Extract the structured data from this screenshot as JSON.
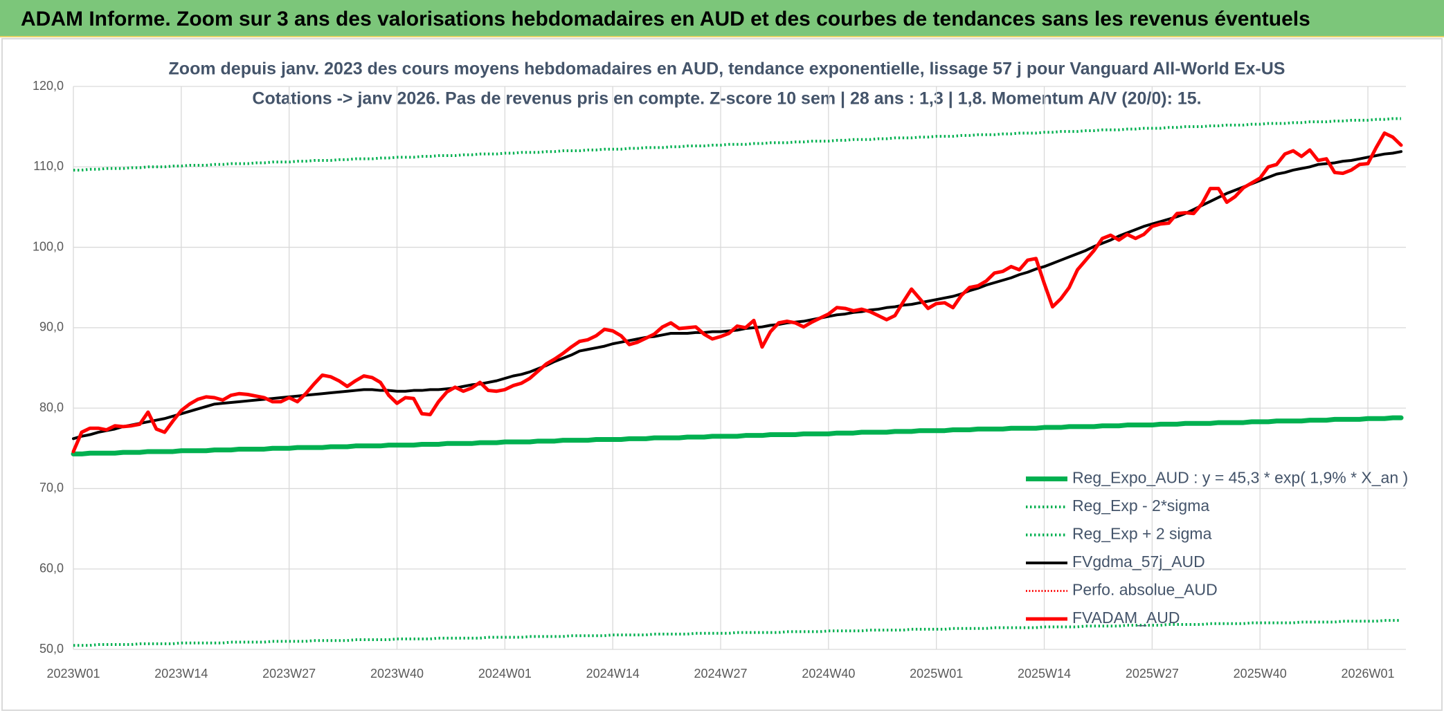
{
  "chart_data": {
    "type": "line",
    "title": "ADAM Informe. Zoom sur 3 ans des valorisations hebdomadaires en AUD et des courbes de tendances sans les revenus éventuels",
    "subtitle": [
      "Zoom depuis janv. 2023 des cours moyens hebdomadaires en AUD, tendance exponentielle, lissage 57 j pour Vanguard All-World Ex-US",
      "Cotations -> janv 2026. Pas de revenus pris en compte. Z-score 10 sem | 28 ans : 1,3 | 1,8. Momentum A/V (20/0): 15."
    ],
    "categories": [
      "2023W01",
      null,
      null,
      null,
      null,
      null,
      null,
      null,
      null,
      null,
      null,
      null,
      null,
      "2023W14",
      null,
      null,
      null,
      null,
      null,
      null,
      null,
      null,
      null,
      null,
      null,
      null,
      "2023W27",
      null,
      null,
      null,
      null,
      null,
      null,
      null,
      null,
      null,
      null,
      null,
      null,
      "2023W40",
      null,
      null,
      null,
      null,
      null,
      null,
      null,
      null,
      null,
      null,
      null,
      null,
      "2024W01",
      null,
      null,
      null,
      null,
      null,
      null,
      null,
      null,
      null,
      null,
      null,
      null,
      "2024W14",
      null,
      null,
      null,
      null,
      null,
      null,
      null,
      null,
      null,
      null,
      null,
      null,
      "2024W27",
      null,
      null,
      null,
      null,
      null,
      null,
      null,
      null,
      null,
      null,
      null,
      null,
      "2024W40",
      null,
      null,
      null,
      null,
      null,
      null,
      null,
      null,
      null,
      null,
      null,
      null,
      "2025W01",
      null,
      null,
      null,
      null,
      null,
      null,
      null,
      null,
      null,
      null,
      null,
      null,
      "2025W14",
      null,
      null,
      null,
      null,
      null,
      null,
      null,
      null,
      null,
      null,
      null,
      null,
      "2025W27",
      null,
      null,
      null,
      null,
      null,
      null,
      null,
      null,
      null,
      null,
      null,
      null,
      "2025W40",
      null,
      null,
      null,
      null,
      null,
      null,
      null,
      null,
      null,
      null,
      null,
      null,
      "2026W01",
      null,
      null,
      null,
      null
    ],
    "ylim": [
      50,
      120
    ],
    "yticks": [
      {
        "value": 50,
        "label": "50,0"
      },
      {
        "value": 60,
        "label": "60,0"
      },
      {
        "value": 70,
        "label": "70,0"
      },
      {
        "value": 80,
        "label": "80,0"
      },
      {
        "value": 90,
        "label": "90,0"
      },
      {
        "value": 100,
        "label": "100,0"
      },
      {
        "value": 110,
        "label": "110,0"
      },
      {
        "value": 120,
        "label": "120,0"
      }
    ],
    "grid": true,
    "legend": "bottom-right",
    "series": [
      {
        "name": "Reg_Expo_AUD : y = 45,3 * exp( 1,9% *  X_an )",
        "color": "#00b050",
        "style": "solid",
        "width": 7,
        "values": [
          74.3,
          74.3,
          74.4,
          74.4,
          74.4,
          74.4,
          74.5,
          74.5,
          74.5,
          74.6,
          74.6,
          74.6,
          74.6,
          74.7,
          74.7,
          74.7,
          74.7,
          74.8,
          74.8,
          74.8,
          74.9,
          74.9,
          74.9,
          74.9,
          75.0,
          75.0,
          75.0,
          75.1,
          75.1,
          75.1,
          75.1,
          75.2,
          75.2,
          75.2,
          75.3,
          75.3,
          75.3,
          75.3,
          75.4,
          75.4,
          75.4,
          75.4,
          75.5,
          75.5,
          75.5,
          75.6,
          75.6,
          75.6,
          75.6,
          75.7,
          75.7,
          75.7,
          75.8,
          75.8,
          75.8,
          75.8,
          75.9,
          75.9,
          75.9,
          76.0,
          76.0,
          76.0,
          76.0,
          76.1,
          76.1,
          76.1,
          76.1,
          76.2,
          76.2,
          76.2,
          76.3,
          76.3,
          76.3,
          76.3,
          76.4,
          76.4,
          76.4,
          76.5,
          76.5,
          76.5,
          76.5,
          76.6,
          76.6,
          76.6,
          76.7,
          76.7,
          76.7,
          76.7,
          76.8,
          76.8,
          76.8,
          76.8,
          76.9,
          76.9,
          76.9,
          77.0,
          77.0,
          77.0,
          77.0,
          77.1,
          77.1,
          77.1,
          77.2,
          77.2,
          77.2,
          77.2,
          77.3,
          77.3,
          77.3,
          77.4,
          77.4,
          77.4,
          77.4,
          77.5,
          77.5,
          77.5,
          77.5,
          77.6,
          77.6,
          77.6,
          77.7,
          77.7,
          77.7,
          77.7,
          77.8,
          77.8,
          77.8,
          77.9,
          77.9,
          77.9,
          77.9,
          78.0,
          78.0,
          78.0,
          78.1,
          78.1,
          78.1,
          78.1,
          78.2,
          78.2,
          78.2,
          78.2,
          78.3,
          78.3,
          78.3,
          78.4,
          78.4,
          78.4,
          78.4,
          78.5,
          78.5,
          78.5,
          78.6,
          78.6,
          78.6,
          78.6,
          78.7,
          78.7,
          78.7,
          78.8,
          78.8
        ]
      },
      {
        "name": "Reg_Exp - 2*sigma",
        "color": "#00b050",
        "style": "dotted",
        "width": 4,
        "values": [
          50.5,
          50.5,
          50.5,
          50.6,
          50.6,
          50.6,
          50.6,
          50.6,
          50.7,
          50.7,
          50.7,
          50.7,
          50.7,
          50.8,
          50.8,
          50.8,
          50.8,
          50.8,
          50.8,
          50.9,
          50.9,
          50.9,
          50.9,
          50.9,
          51.0,
          51.0,
          51.0,
          51.0,
          51.0,
          51.1,
          51.1,
          51.1,
          51.1,
          51.1,
          51.2,
          51.2,
          51.2,
          51.2,
          51.2,
          51.3,
          51.3,
          51.3,
          51.3,
          51.3,
          51.4,
          51.4,
          51.4,
          51.4,
          51.4,
          51.4,
          51.5,
          51.5,
          51.5,
          51.5,
          51.5,
          51.6,
          51.6,
          51.6,
          51.6,
          51.6,
          51.7,
          51.7,
          51.7,
          51.7,
          51.7,
          51.8,
          51.8,
          51.8,
          51.8,
          51.8,
          51.9,
          51.9,
          51.9,
          51.9,
          51.9,
          52.0,
          52.0,
          52.0,
          52.0,
          52.0,
          52.1,
          52.1,
          52.1,
          52.1,
          52.1,
          52.1,
          52.2,
          52.2,
          52.2,
          52.2,
          52.2,
          52.3,
          52.3,
          52.3,
          52.3,
          52.3,
          52.4,
          52.4,
          52.4,
          52.4,
          52.4,
          52.5,
          52.5,
          52.5,
          52.5,
          52.5,
          52.6,
          52.6,
          52.6,
          52.6,
          52.6,
          52.7,
          52.7,
          52.7,
          52.7,
          52.7,
          52.7,
          52.8,
          52.8,
          52.8,
          52.8,
          52.8,
          52.9,
          52.9,
          52.9,
          52.9,
          52.9,
          53.0,
          53.0,
          53.0,
          53.0,
          53.0,
          53.1,
          53.1,
          53.1,
          53.1,
          53.1,
          53.2,
          53.2,
          53.2,
          53.2,
          53.2,
          53.3,
          53.3,
          53.3,
          53.3,
          53.3,
          53.3,
          53.4,
          53.4,
          53.4,
          53.4,
          53.4,
          53.5,
          53.5,
          53.5,
          53.5,
          53.5,
          53.6,
          53.6,
          53.6
        ]
      },
      {
        "name": "Reg_Exp + 2 sigma",
        "color": "#00b050",
        "style": "dotted",
        "width": 4,
        "values": [
          109.6,
          109.6,
          109.7,
          109.7,
          109.8,
          109.8,
          109.8,
          109.9,
          109.9,
          110.0,
          110.0,
          110.0,
          110.1,
          110.1,
          110.2,
          110.2,
          110.2,
          110.3,
          110.3,
          110.4,
          110.4,
          110.4,
          110.5,
          110.5,
          110.6,
          110.6,
          110.6,
          110.7,
          110.7,
          110.8,
          110.8,
          110.8,
          110.9,
          110.9,
          111.0,
          111.0,
          111.0,
          111.1,
          111.1,
          111.2,
          111.2,
          111.2,
          111.3,
          111.3,
          111.4,
          111.4,
          111.4,
          111.5,
          111.5,
          111.6,
          111.6,
          111.6,
          111.7,
          111.7,
          111.8,
          111.8,
          111.8,
          111.9,
          111.9,
          112.0,
          112.0,
          112.0,
          112.1,
          112.1,
          112.2,
          112.2,
          112.2,
          112.3,
          112.3,
          112.4,
          112.4,
          112.4,
          112.5,
          112.5,
          112.6,
          112.6,
          112.6,
          112.7,
          112.7,
          112.8,
          112.8,
          112.8,
          112.9,
          112.9,
          113.0,
          113.0,
          113.0,
          113.1,
          113.1,
          113.2,
          113.2,
          113.2,
          113.3,
          113.3,
          113.4,
          113.4,
          113.4,
          113.5,
          113.5,
          113.6,
          113.6,
          113.6,
          113.7,
          113.7,
          113.8,
          113.8,
          113.8,
          113.9,
          113.9,
          114.0,
          114.0,
          114.0,
          114.1,
          114.1,
          114.2,
          114.2,
          114.2,
          114.3,
          114.3,
          114.4,
          114.4,
          114.4,
          114.5,
          114.5,
          114.6,
          114.6,
          114.6,
          114.7,
          114.7,
          114.8,
          114.8,
          114.8,
          114.9,
          114.9,
          115.0,
          115.0,
          115.0,
          115.1,
          115.1,
          115.2,
          115.2,
          115.2,
          115.3,
          115.3,
          115.4,
          115.4,
          115.4,
          115.5,
          115.5,
          115.6,
          115.6,
          115.6,
          115.7,
          115.7,
          115.8,
          115.8,
          115.8,
          115.9,
          115.9,
          116.0,
          116.0
        ]
      },
      {
        "name": "FVgdma_57j_AUD",
        "color": "#000000",
        "style": "solid",
        "width": 4,
        "values": [
          76.2,
          76.5,
          76.7,
          77.0,
          77.2,
          77.4,
          77.7,
          77.9,
          78.1,
          78.3,
          78.5,
          78.7,
          79.0,
          79.3,
          79.6,
          79.9,
          80.2,
          80.5,
          80.6,
          80.7,
          80.8,
          80.9,
          81.0,
          81.1,
          81.2,
          81.3,
          81.4,
          81.5,
          81.6,
          81.7,
          81.8,
          81.9,
          82.0,
          82.1,
          82.2,
          82.3,
          82.3,
          82.2,
          82.2,
          82.1,
          82.1,
          82.2,
          82.2,
          82.3,
          82.3,
          82.4,
          82.5,
          82.7,
          82.9,
          83.0,
          83.2,
          83.4,
          83.7,
          84.0,
          84.2,
          84.5,
          84.9,
          85.3,
          85.8,
          86.2,
          86.6,
          87.1,
          87.3,
          87.5,
          87.7,
          88.0,
          88.2,
          88.4,
          88.6,
          88.8,
          88.9,
          89.1,
          89.3,
          89.3,
          89.3,
          89.4,
          89.4,
          89.5,
          89.5,
          89.6,
          89.7,
          89.9,
          90.0,
          90.1,
          90.3,
          90.4,
          90.6,
          90.7,
          90.8,
          91.0,
          91.2,
          91.4,
          91.6,
          91.7,
          91.9,
          92.0,
          92.2,
          92.3,
          92.5,
          92.6,
          92.8,
          92.9,
          93.1,
          93.3,
          93.5,
          93.7,
          93.9,
          94.2,
          94.6,
          94.9,
          95.3,
          95.6,
          95.9,
          96.2,
          96.6,
          96.9,
          97.3,
          97.6,
          98.0,
          98.4,
          98.8,
          99.2,
          99.6,
          100.1,
          100.5,
          100.9,
          101.4,
          101.8,
          102.2,
          102.6,
          102.9,
          103.2,
          103.5,
          103.8,
          104.2,
          104.7,
          105.2,
          105.7,
          106.2,
          106.7,
          107.1,
          107.5,
          107.9,
          108.3,
          108.7,
          109.1,
          109.3,
          109.6,
          109.8,
          110.0,
          110.3,
          110.4,
          110.5,
          110.7,
          110.8,
          111.0,
          111.2,
          111.4,
          111.6,
          111.7,
          111.9
        ]
      },
      {
        "name": "Perfo. absolue_AUD",
        "color": "#ff0000",
        "style": "dotted",
        "width": 3,
        "values": [
          null,
          null,
          null,
          null,
          null,
          null,
          null,
          null,
          null,
          null,
          null,
          null,
          null,
          null,
          null,
          null,
          null,
          null,
          null,
          null,
          null,
          null,
          null,
          null,
          null,
          null,
          null,
          null,
          null,
          null,
          null,
          null,
          null,
          null,
          null,
          null,
          null,
          null,
          null,
          null,
          null,
          null,
          null,
          null,
          null,
          null,
          null,
          null,
          null,
          null,
          null,
          null,
          null,
          null,
          null,
          null,
          null,
          null,
          null,
          null,
          null,
          null,
          null,
          null,
          null,
          null,
          null,
          null,
          null,
          null,
          null,
          null,
          null,
          null,
          null,
          null,
          null,
          null,
          null,
          null,
          null,
          null,
          null,
          null,
          null,
          null,
          null,
          null,
          null,
          null,
          null,
          null,
          null,
          null,
          null,
          null,
          null,
          null,
          null,
          null,
          null,
          null,
          null,
          null,
          null,
          null,
          null,
          null,
          null,
          null,
          null,
          null,
          null,
          null,
          null,
          null,
          null,
          null,
          null,
          null,
          null,
          null,
          null,
          null,
          null,
          null,
          null,
          null,
          null,
          null,
          null,
          null,
          null,
          null,
          null,
          null,
          null,
          null,
          null,
          null,
          null,
          null,
          null,
          null,
          null,
          null,
          null,
          null,
          null,
          null,
          null,
          null,
          null,
          null,
          null,
          null,
          null,
          null,
          null,
          null,
          null
        ]
      },
      {
        "name": "FVADAM_AUD",
        "color": "#ff0000",
        "style": "solid",
        "width": 5,
        "values": [
          74.6,
          77.0,
          77.5,
          77.5,
          77.3,
          77.8,
          77.7,
          77.8,
          78.0,
          79.5,
          77.4,
          77.0,
          78.4,
          79.7,
          80.5,
          81.1,
          81.4,
          81.3,
          81.0,
          81.6,
          81.8,
          81.7,
          81.5,
          81.3,
          80.8,
          80.8,
          81.3,
          80.8,
          81.8,
          83.0,
          84.1,
          83.9,
          83.4,
          82.7,
          83.4,
          84.0,
          83.8,
          83.2,
          81.6,
          80.6,
          81.3,
          81.2,
          79.3,
          79.2,
          80.8,
          82.0,
          82.6,
          82.1,
          82.5,
          83.2,
          82.2,
          82.1,
          82.3,
          82.8,
          83.1,
          83.7,
          84.6,
          85.5,
          86.1,
          86.8,
          87.6,
          88.3,
          88.5,
          89.0,
          89.8,
          89.6,
          89.0,
          87.9,
          88.2,
          88.7,
          89.2,
          90.1,
          90.6,
          89.9,
          90.0,
          90.1,
          89.2,
          88.6,
          88.9,
          89.3,
          90.2,
          90.0,
          90.9,
          87.6,
          89.5,
          90.6,
          90.8,
          90.6,
          90.1,
          90.7,
          91.2,
          91.7,
          92.5,
          92.4,
          92.1,
          92.3,
          92.0,
          91.5,
          91.0,
          91.5,
          93.2,
          94.8,
          93.6,
          92.4,
          93.0,
          93.1,
          92.5,
          94.0,
          95.0,
          95.2,
          95.8,
          96.8,
          97.0,
          97.6,
          97.2,
          98.4,
          98.6,
          95.5,
          92.6,
          93.6,
          95.0,
          97.2,
          98.4,
          99.6,
          101.1,
          101.5,
          100.9,
          101.6,
          101.1,
          101.6,
          102.6,
          102.9,
          103.0,
          104.2,
          104.3,
          104.2,
          105.4,
          107.3,
          107.3,
          105.6,
          106.3,
          107.4,
          108.0,
          108.6,
          110.0,
          110.3,
          111.6,
          112.0,
          111.3,
          112.1,
          110.8,
          111.0,
          109.3,
          109.2,
          109.6,
          110.3,
          110.4,
          112.4,
          114.2,
          113.7,
          112.7
        ]
      }
    ]
  }
}
